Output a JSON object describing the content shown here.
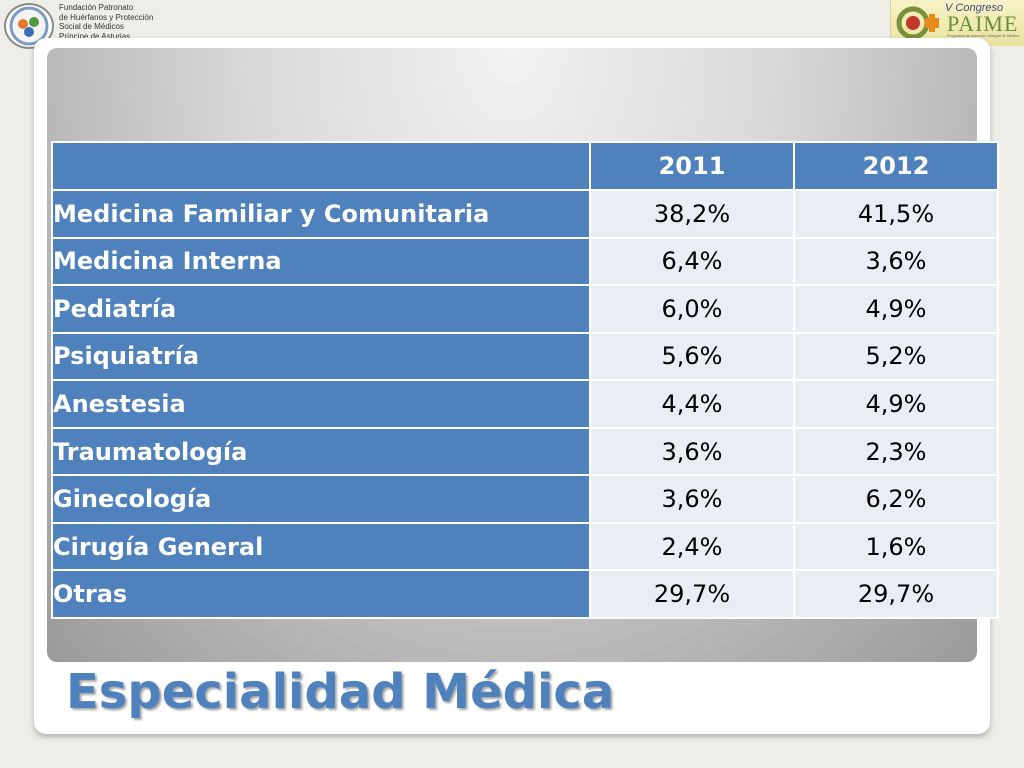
{
  "header": {
    "org_lines": [
      "Fundación Patronato",
      "de Huérfanos y Protección",
      "Social de Médicos",
      "Príncipe de Asturias"
    ],
    "congress": {
      "line1": "V Congreso",
      "line2": "PAIME",
      "line3": "Programa de Atención Integral al Médico Enfermo"
    }
  },
  "table": {
    "headers": [
      "",
      "2011",
      "2012"
    ],
    "rows": [
      {
        "label": "Medicina Familiar y Comunitaria",
        "y2011": "38,2%",
        "y2012": "41,5%"
      },
      {
        "label": "Medicina Interna",
        "y2011": "6,4%",
        "y2012": "3,6%"
      },
      {
        "label": "Pediatría",
        "y2011": "6,0%",
        "y2012": "4,9%"
      },
      {
        "label": "Psiquiatría",
        "y2011": "5,6%",
        "y2012": "5,2%"
      },
      {
        "label": "Anestesia",
        "y2011": "4,4%",
        "y2012": "4,9%"
      },
      {
        "label": "Traumatología",
        "y2011": "3,6%",
        "y2012": "2,3%"
      },
      {
        "label": "Ginecología",
        "y2011": "3,6%",
        "y2012": "6,2%"
      },
      {
        "label": "Cirugía General",
        "y2011": "2,4%",
        "y2012": "1,6%"
      },
      {
        "label": "Otras",
        "y2011": "29,7%",
        "y2012": "29,7%"
      }
    ]
  },
  "title": "Especialidad Médica",
  "colors": {
    "accent": "#4f81bd",
    "cell_background": "#e9edf4",
    "page_background": "#eeede7"
  }
}
